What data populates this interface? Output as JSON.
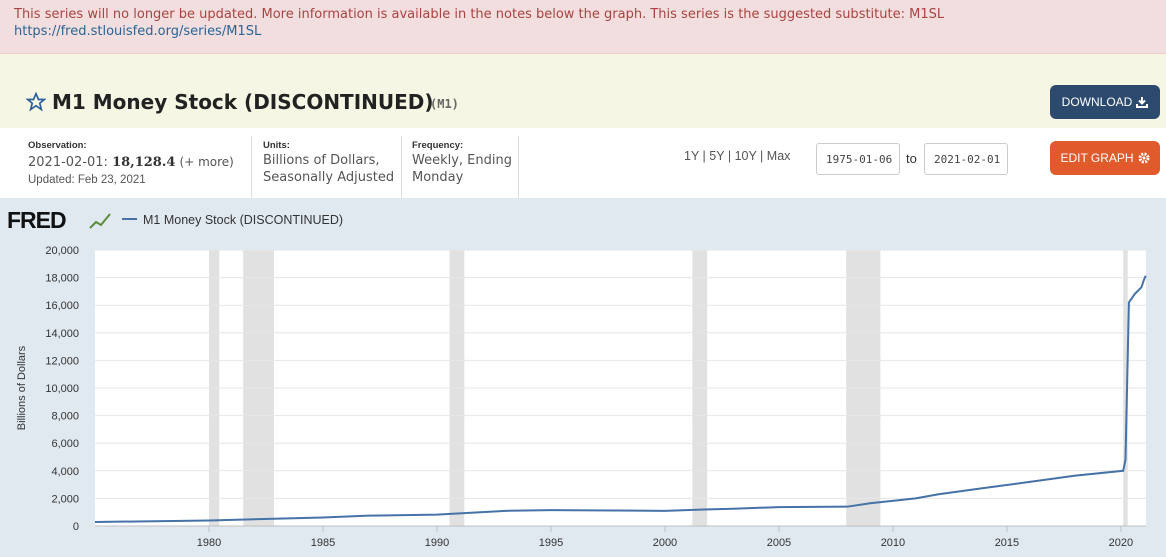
{
  "banner": {
    "text": "This series will no longer be updated. More information is available in the notes below the graph. This series is the suggested substitute: M1SL",
    "link": "https://fred.stlouisfed.org/series/M1SL"
  },
  "header": {
    "title": "M1 Money Stock (DISCONTINUED)",
    "series_id": "(M1)",
    "download": "DOWNLOAD"
  },
  "meta": {
    "observation_label": "Observation:",
    "observation_date": "2021-02-01:",
    "observation_value": "18,128.4",
    "more": "(+ more)",
    "updated": "Updated: Feb 23, 2021",
    "units_label": "Units:",
    "units": "Billions of Dollars, Seasonally Adjusted",
    "frequency_label": "Frequency:",
    "frequency": "Weekly, Ending Monday"
  },
  "controls": {
    "ranges": [
      "1Y",
      "5Y",
      "10Y",
      "Max"
    ],
    "start": "1975-01-06",
    "to": "to",
    "end": "2021-02-01",
    "edit": "EDIT GRAPH"
  },
  "logo": "FRED",
  "chart_data": {
    "type": "line",
    "ylabel": "Billions of Dollars",
    "x": [
      1975.0,
      1980.0,
      1985.0,
      1987.0,
      1990.0,
      1993.0,
      1995.0,
      2000.0,
      2001.7,
      2003.0,
      2005.0,
      2008.0,
      2009.0,
      2011.0,
      2012.0,
      2014.0,
      2016.0,
      2018.0,
      2020.1,
      2020.2,
      2020.35,
      2020.6,
      2020.9,
      2021.0,
      2021.09
    ],
    "series": [
      {
        "name": "M1 Money Stock (DISCONTINUED)",
        "color": "#4572a7",
        "values": [
          290,
          400,
          620,
          750,
          820,
          1100,
          1150,
          1100,
          1200,
          1250,
          1370,
          1400,
          1650,
          2000,
          2300,
          2750,
          3200,
          3650,
          4000,
          4800,
          16200,
          16800,
          17300,
          17800,
          18128.4
        ]
      }
    ],
    "shaded_periods": [
      [
        1980.0,
        1980.45
      ],
      [
        1981.5,
        1982.85
      ],
      [
        1990.55,
        1991.2
      ],
      [
        2001.2,
        2001.85
      ],
      [
        2007.95,
        2009.45
      ],
      [
        2020.1,
        2020.3
      ]
    ],
    "shade_color": "#e1e1e1",
    "xlim": [
      1975.0,
      2021.1
    ],
    "xticks": [
      1980,
      1985,
      1990,
      1995,
      2000,
      2005,
      2010,
      2015,
      2020
    ],
    "ylim": [
      0,
      20000
    ],
    "yticks": [
      0,
      {
        "value": 2000,
        "label": "2,000"
      },
      {
        "value": 4000,
        "label": "4,000"
      },
      {
        "value": 6000,
        "label": "6,000"
      },
      {
        "value": 8000,
        "label": "8,000"
      },
      {
        "value": 10000,
        "label": "10,000"
      },
      {
        "value": 12000,
        "label": "12,000"
      },
      {
        "value": 14000,
        "label": "14,000"
      },
      {
        "value": 16000,
        "label": "16,000"
      },
      {
        "value": 18000,
        "label": "18,000"
      },
      {
        "value": 20000,
        "label": "20,000"
      }
    ],
    "grid": true
  }
}
